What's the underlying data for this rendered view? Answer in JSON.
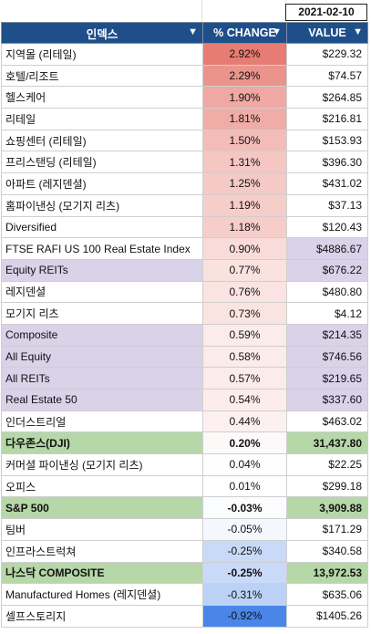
{
  "date": "2021-02-10",
  "headers": {
    "index": "인덱스",
    "change": "% CHANGE",
    "value": "VALUE",
    "filter_icon": "filter-icon"
  },
  "rows": [
    {
      "name": "지역몰 (리테일)",
      "change": "2.92%",
      "value": "$229.32",
      "bg_name": "#ffffff",
      "bg_change": "#e67c73",
      "bg_value": "#ffffff",
      "bold": false
    },
    {
      "name": "호텔/리조트",
      "change": "2.29%",
      "value": "$74.57",
      "bg_name": "#ffffff",
      "bg_change": "#ea948c",
      "bg_value": "#ffffff",
      "bold": false
    },
    {
      "name": "헬스케어",
      "change": "1.90%",
      "value": "$264.85",
      "bg_name": "#ffffff",
      "bg_change": "#efa8a2",
      "bg_value": "#ffffff",
      "bold": false
    },
    {
      "name": "리테일",
      "change": "1.81%",
      "value": "$216.81",
      "bg_name": "#ffffff",
      "bg_change": "#f0aca6",
      "bg_value": "#ffffff",
      "bold": false
    },
    {
      "name": "쇼핑센터 (리테일)",
      "change": "1.50%",
      "value": "$153.93",
      "bg_name": "#ffffff",
      "bg_change": "#f3bcb7",
      "bg_value": "#ffffff",
      "bold": false
    },
    {
      "name": "프리스탠딩 (리테일)",
      "change": "1.31%",
      "value": "$396.30",
      "bg_name": "#ffffff",
      "bg_change": "#f5c6c2",
      "bg_value": "#ffffff",
      "bold": false
    },
    {
      "name": "아파트 (레지덴셜)",
      "change": "1.25%",
      "value": "$431.02",
      "bg_name": "#ffffff",
      "bg_change": "#f5c9c5",
      "bg_value": "#ffffff",
      "bold": false
    },
    {
      "name": "홈파이낸싱 (모기지 리츠)",
      "change": "1.19%",
      "value": "$37.13",
      "bg_name": "#ffffff",
      "bg_change": "#f6cdc9",
      "bg_value": "#ffffff",
      "bold": false
    },
    {
      "name": "Diversified",
      "change": "1.18%",
      "value": "$120.43",
      "bg_name": "#ffffff",
      "bg_change": "#f6cdc9",
      "bg_value": "#ffffff",
      "bold": false
    },
    {
      "name": "FTSE RAFI US 100 Real Estate Index",
      "change": "0.90%",
      "value": "$4886.67",
      "bg_name": "#ffffff",
      "bg_change": "#f9dcd9",
      "bg_value": "#d9d2e9",
      "bold": false
    },
    {
      "name": "Equity REITs",
      "change": "0.77%",
      "value": "$676.22",
      "bg_name": "#d9d2e9",
      "bg_change": "#fae2df",
      "bg_value": "#d9d2e9",
      "bold": false
    },
    {
      "name": "레지덴셜",
      "change": "0.76%",
      "value": "$480.80",
      "bg_name": "#ffffff",
      "bg_change": "#fae3e0",
      "bg_value": "#ffffff",
      "bold": false
    },
    {
      "name": "모기지 리츠",
      "change": "0.73%",
      "value": "$4.12",
      "bg_name": "#ffffff",
      "bg_change": "#fae4e1",
      "bg_value": "#ffffff",
      "bold": false
    },
    {
      "name": "Composite",
      "change": "0.59%",
      "value": "$214.35",
      "bg_name": "#d9d2e9",
      "bg_change": "#fbebe9",
      "bg_value": "#d9d2e9",
      "bold": false
    },
    {
      "name": "All Equity",
      "change": "0.58%",
      "value": "$746.56",
      "bg_name": "#d9d2e9",
      "bg_change": "#fbebe9",
      "bg_value": "#d9d2e9",
      "bold": false
    },
    {
      "name": "All REITs",
      "change": "0.57%",
      "value": "$219.65",
      "bg_name": "#d9d2e9",
      "bg_change": "#fbecea",
      "bg_value": "#d9d2e9",
      "bold": false
    },
    {
      "name": "Real Estate 50",
      "change": "0.54%",
      "value": "$337.60",
      "bg_name": "#d9d2e9",
      "bg_change": "#fcedeb",
      "bg_value": "#d9d2e9",
      "bold": false
    },
    {
      "name": "인더스트리얼",
      "change": "0.44%",
      "value": "$463.02",
      "bg_name": "#ffffff",
      "bg_change": "#fcf1f0",
      "bg_value": "#ffffff",
      "bold": false
    },
    {
      "name": "다우존스(DJI)",
      "change": "0.20%",
      "value": "31,437.80",
      "bg_name": "#b6d7a8",
      "bg_change": "#fdf9f9",
      "bg_value": "#b6d7a8",
      "bold": true
    },
    {
      "name": "커머셜 파이낸싱 (모기지 리츠)",
      "change": "0.04%",
      "value": "$22.25",
      "bg_name": "#ffffff",
      "bg_change": "#fffefe",
      "bg_value": "#ffffff",
      "bold": false
    },
    {
      "name": "오피스",
      "change": "0.01%",
      "value": "$299.18",
      "bg_name": "#ffffff",
      "bg_change": "#ffffff",
      "bg_value": "#ffffff",
      "bold": false
    },
    {
      "name": "S&P 500",
      "change": "-0.03%",
      "value": "3,909.88",
      "bg_name": "#b6d7a8",
      "bg_change": "#fbfcfe",
      "bg_value": "#b6d7a8",
      "bold": true
    },
    {
      "name": "팀버",
      "change": "-0.05%",
      "value": "$171.29",
      "bg_name": "#ffffff",
      "bg_change": "#f4f7fd",
      "bg_value": "#ffffff",
      "bold": false
    },
    {
      "name": "인프라스트럭쳐",
      "change": "-0.25%",
      "value": "$340.58",
      "bg_name": "#ffffff",
      "bg_change": "#c9daf8",
      "bg_value": "#ffffff",
      "bold": false
    },
    {
      "name": "나스닥 COMPOSITE",
      "change": "-0.25%",
      "value": "13,972.53",
      "bg_name": "#b6d7a8",
      "bg_change": "#c9daf8",
      "bg_value": "#b6d7a8",
      "bold": true
    },
    {
      "name": "Manufactured Homes (레지덴셜)",
      "change": "-0.31%",
      "value": "$635.06",
      "bg_name": "#ffffff",
      "bg_change": "#bcd1f6",
      "bg_value": "#ffffff",
      "bold": false
    },
    {
      "name": "셀프스토리지",
      "change": "-0.92%",
      "value": "$1405.26",
      "bg_name": "#ffffff",
      "bg_change": "#4a86e8",
      "bg_value": "#ffffff",
      "bold": false
    }
  ]
}
